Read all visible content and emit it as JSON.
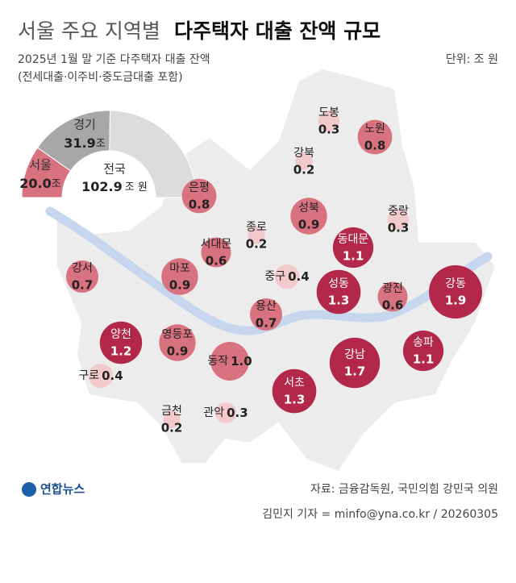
{
  "header": {
    "title_light": "서울 주요 지역별",
    "title_bold": "다주택자 대출 잔액 규모",
    "subtitle": [
      "2025년 1월 말 기준 다주택자 대출 잔액",
      "(전세대출·이주비·중도금대출 포함)"
    ],
    "unit": "단위: 조 원"
  },
  "donut": {
    "total_name": "전국",
    "total": 102.9,
    "total_unit": "조 원",
    "unit": "조",
    "segments": [
      {
        "name": "서울",
        "value": 20.0,
        "value_label": "20.0",
        "color": "#d9727f"
      },
      {
        "name": "경기",
        "value": 31.9,
        "color": "#a7a7a7"
      }
    ],
    "rest_color": "#dcdcdc"
  },
  "districts": [
    {
      "name": "도봉",
      "value": 0.3,
      "color": "#f2c9cc"
    },
    {
      "name": "노원",
      "value": 0.8,
      "color": "#d9727f"
    },
    {
      "name": "강북",
      "value": 0.2,
      "color": "#f2c9cc"
    },
    {
      "name": "은평",
      "value": 0.8,
      "color": "#d9727f"
    },
    {
      "name": "성북",
      "value": 0.9,
      "color": "#d9727f"
    },
    {
      "name": "중랑",
      "value": 0.3,
      "color": "#f2c9cc"
    },
    {
      "name": "종로",
      "value": 0.2,
      "color": "#f2c9cc"
    },
    {
      "name": "동대문",
      "value": 1.1,
      "color": "#b3284a"
    },
    {
      "name": "서대문",
      "value": 0.6,
      "color": "#d9727f"
    },
    {
      "name": "강서",
      "value": 0.7,
      "color": "#d9727f"
    },
    {
      "name": "마포",
      "value": 0.9,
      "color": "#d9727f"
    },
    {
      "name": "중구",
      "value": 0.4,
      "color": "#f2c9cc"
    },
    {
      "name": "성동",
      "value": 1.3,
      "color": "#b3284a"
    },
    {
      "name": "광진",
      "value": 0.6,
      "color": "#d9727f"
    },
    {
      "name": "강동",
      "value": 1.9,
      "color": "#b3284a"
    },
    {
      "name": "용산",
      "value": 0.7,
      "color": "#d9727f"
    },
    {
      "name": "양천",
      "value": 1.2,
      "color": "#b3284a"
    },
    {
      "name": "영등포",
      "value": 0.9,
      "color": "#d9727f"
    },
    {
      "name": "동작",
      "value": 1.0,
      "value_label": "1.0",
      "color": "#d9727f"
    },
    {
      "name": "강남",
      "value": 1.7,
      "color": "#b3284a"
    },
    {
      "name": "송파",
      "value": 1.1,
      "color": "#b3284a"
    },
    {
      "name": "구로",
      "value": 0.4,
      "color": "#f2c9cc"
    },
    {
      "name": "서초",
      "value": 1.3,
      "color": "#b3284a"
    },
    {
      "name": "금천",
      "value": 0.2,
      "color": "#f2c9cc"
    },
    {
      "name": "관악",
      "value": 0.3,
      "color": "#f2c9cc"
    }
  ],
  "footer": {
    "logo": "연합뉴스",
    "source": "자료: 금융감독원, 국민의힘 강민국 의원",
    "credit": "김민지 기자 = minfo@yna.co.kr / 20260305"
  }
}
